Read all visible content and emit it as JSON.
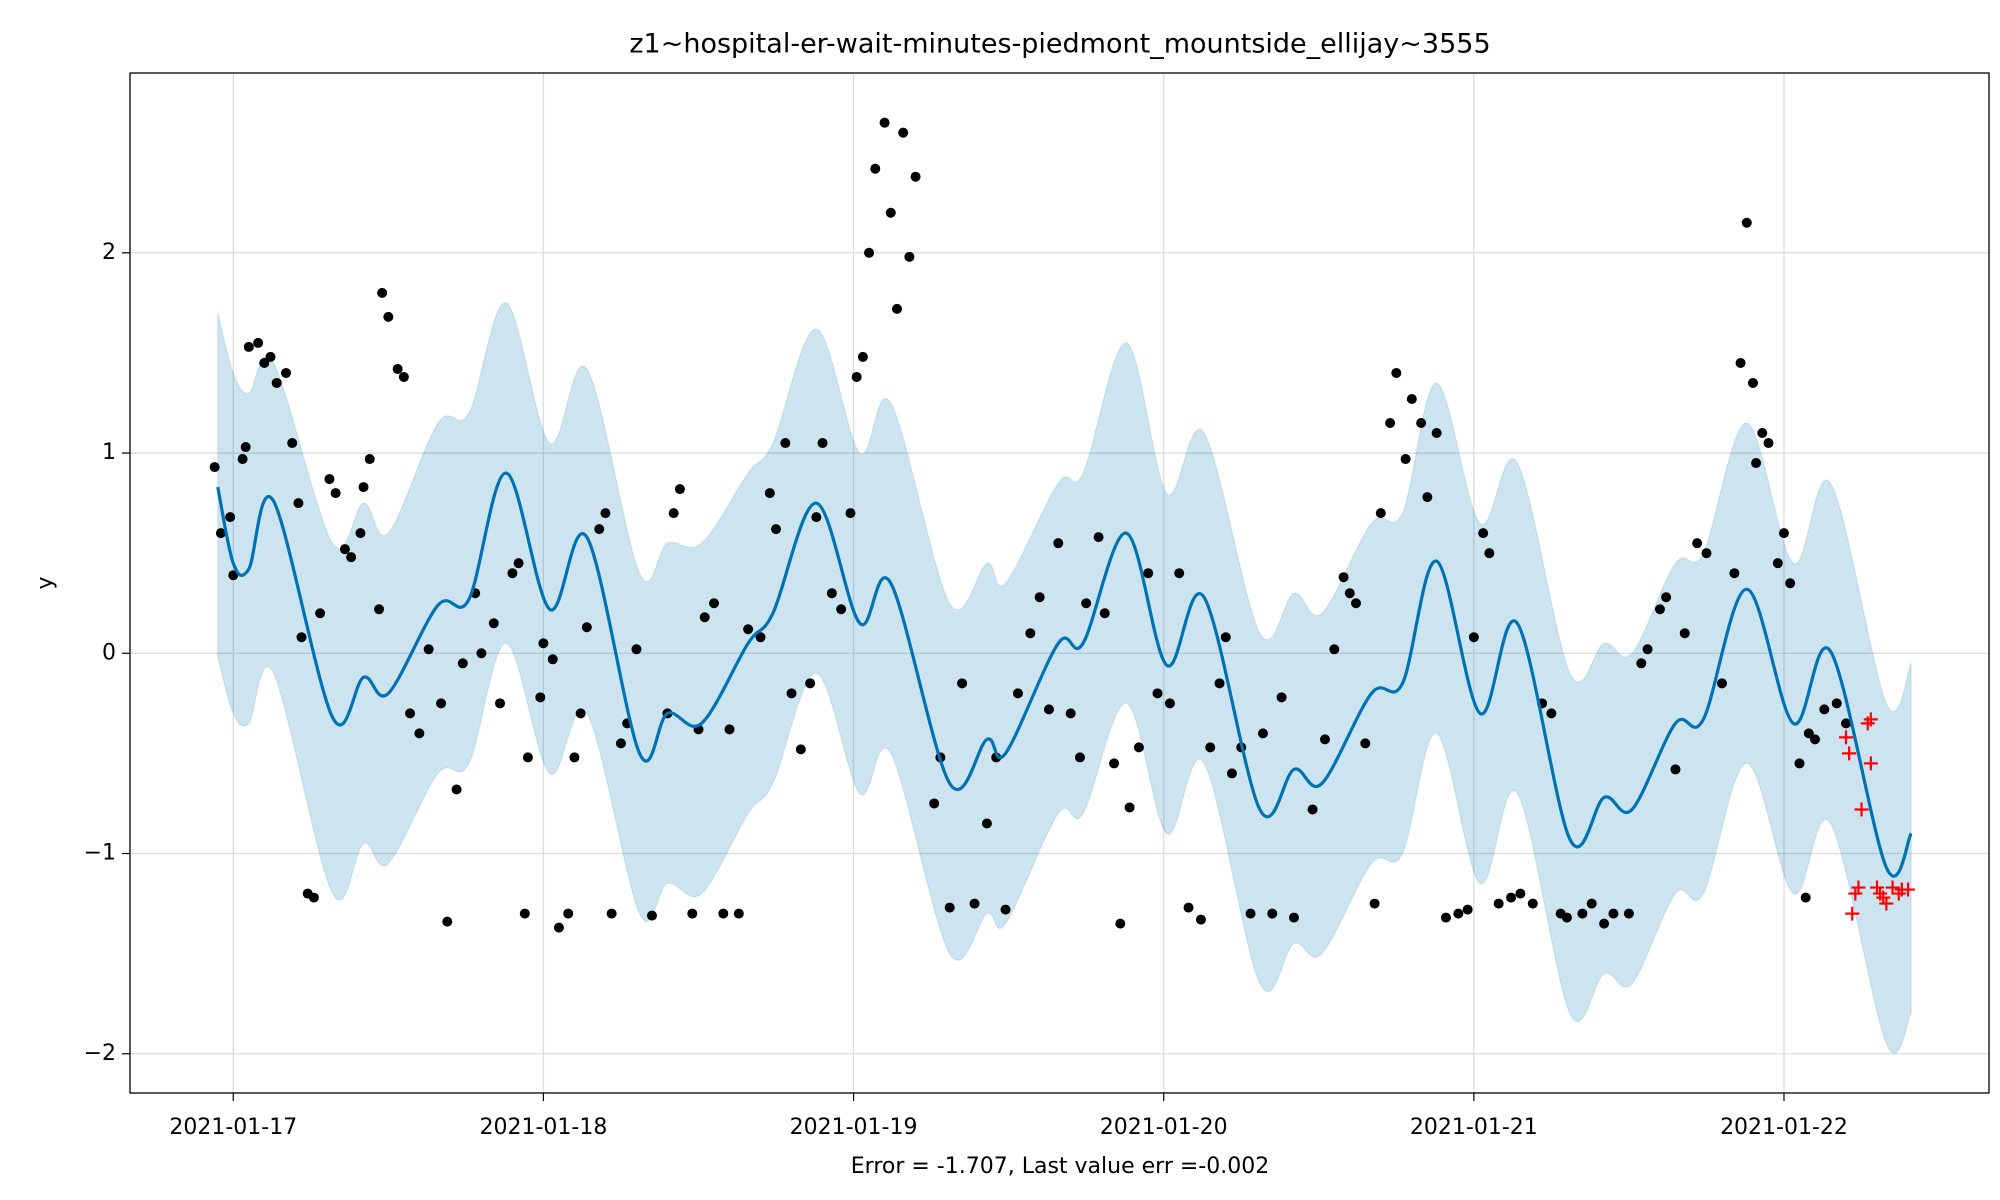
{
  "chart_data": {
    "type": "forecast",
    "title": "z1~hospital-er-wait-minutes-piedmont_mountside_ellijay~3555",
    "xlabel": "Error = -1.707, Last value err =-0.002",
    "ylabel": "y",
    "xlim": [
      16.667,
      22.661
    ],
    "ylim": [
      -2.196,
      2.898
    ],
    "xticks": [
      {
        "value": 17,
        "label": "2021-01-17"
      },
      {
        "value": 18,
        "label": "2021-01-18"
      },
      {
        "value": 19,
        "label": "2021-01-19"
      },
      {
        "value": 20,
        "label": "2021-01-20"
      },
      {
        "value": 21,
        "label": "2021-01-21"
      },
      {
        "value": 22,
        "label": "2021-01-22"
      }
    ],
    "yticks": [
      {
        "value": -2,
        "label": "−2"
      },
      {
        "value": -1,
        "label": "−1"
      },
      0,
      1,
      2
    ],
    "grid": true,
    "forecast": {
      "color": "#0072b2",
      "x": [
        16.95,
        17.0,
        17.05,
        17.13,
        17.32,
        17.42,
        17.5,
        17.66,
        17.76,
        17.88,
        18.02,
        18.14,
        18.31,
        18.4,
        18.51,
        18.66,
        18.74,
        18.88,
        19.02,
        19.12,
        19.31,
        19.43,
        19.49,
        19.66,
        19.74,
        19.88,
        20.01,
        20.13,
        20.31,
        20.42,
        20.51,
        20.67,
        20.77,
        20.88,
        21.02,
        21.14,
        21.31,
        21.42,
        21.51,
        21.65,
        21.74,
        21.88,
        22.03,
        22.15,
        22.33,
        22.41
      ],
      "values": [
        0.83,
        0.45,
        0.42,
        0.76,
        -0.32,
        -0.12,
        -0.2,
        0.24,
        0.27,
        0.9,
        0.22,
        0.58,
        -0.5,
        -0.3,
        -0.35,
        0.05,
        0.2,
        0.75,
        0.15,
        0.35,
        -0.65,
        -0.43,
        -0.5,
        0.05,
        0.05,
        0.6,
        -0.06,
        0.28,
        -0.78,
        -0.58,
        -0.65,
        -0.2,
        -0.15,
        0.46,
        -0.3,
        0.15,
        -0.93,
        -0.72,
        -0.78,
        -0.35,
        -0.33,
        0.32,
        -0.35,
        0.01,
        -1.07,
        -0.9
      ],
      "upper": [
        1.7,
        1.4,
        1.3,
        1.45,
        0.55,
        0.75,
        0.6,
        1.15,
        1.2,
        1.75,
        1.05,
        1.42,
        0.4,
        0.55,
        0.55,
        0.9,
        1.05,
        1.62,
        1.0,
        1.25,
        0.25,
        0.45,
        0.35,
        0.85,
        0.9,
        1.55,
        0.8,
        1.1,
        0.1,
        0.3,
        0.2,
        0.65,
        0.7,
        1.35,
        0.65,
        0.95,
        -0.1,
        0.05,
        0.0,
        0.45,
        0.5,
        1.15,
        0.45,
        0.85,
        -0.25,
        -0.05
      ],
      "lower": [
        -0.02,
        -0.3,
        -0.35,
        -0.1,
        -1.2,
        -0.95,
        -1.05,
        -0.6,
        -0.55,
        0.05,
        -0.6,
        -0.3,
        -1.3,
        -1.15,
        -1.2,
        -0.8,
        -0.65,
        -0.1,
        -0.7,
        -0.5,
        -1.5,
        -1.3,
        -1.35,
        -0.8,
        -0.8,
        -0.25,
        -0.9,
        -0.55,
        -1.65,
        -1.45,
        -1.5,
        -1.05,
        -1.0,
        -0.4,
        -1.15,
        -0.7,
        -1.8,
        -1.6,
        -1.65,
        -1.2,
        -1.2,
        -0.55,
        -1.2,
        -0.85,
        -1.95,
        -1.8
      ]
    },
    "observed": {
      "color": "#000000",
      "x": [
        16.94,
        16.96,
        16.99,
        17.0,
        17.03,
        17.04,
        17.05,
        17.08,
        17.1,
        17.12,
        17.14,
        17.17,
        17.19,
        17.21,
        17.22,
        17.24,
        17.26,
        17.28,
        17.31,
        17.33,
        17.36,
        17.38,
        17.41,
        17.42,
        17.44,
        17.47,
        17.48,
        17.5,
        17.53,
        17.55,
        17.57,
        17.6,
        17.63,
        17.67,
        17.69,
        17.72,
        17.74,
        17.78,
        17.8,
        17.84,
        17.86,
        17.9,
        17.92,
        17.94,
        17.95,
        17.99,
        18.0,
        18.03,
        18.05,
        18.08,
        18.1,
        18.12,
        18.14,
        18.18,
        18.2,
        18.22,
        18.25,
        18.27,
        18.3,
        18.35,
        18.4,
        18.42,
        18.44,
        18.48,
        18.5,
        18.52,
        18.55,
        18.58,
        18.6,
        18.63,
        18.66,
        18.7,
        18.73,
        18.75,
        18.78,
        18.8,
        18.83,
        18.86,
        18.88,
        18.9,
        18.93,
        18.96,
        18.99,
        19.01,
        19.03,
        19.05,
        19.07,
        19.1,
        19.12,
        19.14,
        19.16,
        19.18,
        19.2,
        19.26,
        19.28,
        19.31,
        19.35,
        19.39,
        19.43,
        19.46,
        19.49,
        19.53,
        19.57,
        19.6,
        19.63,
        19.66,
        19.7,
        19.73,
        19.75,
        19.79,
        19.81,
        19.84,
        19.86,
        19.89,
        19.92,
        19.95,
        19.98,
        20.02,
        20.05,
        20.08,
        20.12,
        20.15,
        20.18,
        20.2,
        20.22,
        20.25,
        20.28,
        20.32,
        20.35,
        20.38,
        20.42,
        20.48,
        20.52,
        20.55,
        20.58,
        20.6,
        20.62,
        20.65,
        20.68,
        20.7,
        20.73,
        20.75,
        20.78,
        20.8,
        20.83,
        20.85,
        20.88,
        20.91,
        20.95,
        20.98,
        21.0,
        21.03,
        21.05,
        21.08,
        21.12,
        21.15,
        21.19,
        21.22,
        21.25,
        21.28,
        21.3,
        21.35,
        21.38,
        21.42,
        21.45,
        21.5,
        21.54,
        21.56,
        21.6,
        21.62,
        21.65,
        21.68,
        21.72,
        21.75,
        21.8,
        21.84,
        21.86,
        21.88,
        21.9,
        21.91,
        21.93,
        21.95,
        21.98,
        22.0,
        22.02,
        22.05,
        22.07,
        22.08,
        22.1,
        22.13,
        22.17,
        22.2
      ],
      "values": [
        0.93,
        0.6,
        0.68,
        0.39,
        0.97,
        1.03,
        1.53,
        1.55,
        1.45,
        1.48,
        1.35,
        1.4,
        1.05,
        0.75,
        0.08,
        -1.2,
        -1.22,
        0.2,
        0.87,
        0.8,
        0.52,
        0.48,
        0.6,
        0.83,
        0.97,
        0.22,
        1.8,
        1.68,
        1.42,
        1.38,
        -0.3,
        -0.4,
        0.02,
        -0.25,
        -1.34,
        -0.68,
        -0.05,
        0.3,
        0.0,
        0.15,
        -0.25,
        0.4,
        0.45,
        -1.3,
        -0.52,
        -0.22,
        0.05,
        -0.03,
        -1.37,
        -1.3,
        -0.52,
        -0.3,
        0.13,
        0.62,
        0.7,
        -1.3,
        -0.45,
        -0.35,
        0.02,
        -1.31,
        -0.3,
        0.7,
        0.82,
        -1.3,
        -0.38,
        0.18,
        0.25,
        -1.3,
        -0.38,
        -1.3,
        0.12,
        0.08,
        0.8,
        0.62,
        1.05,
        -0.2,
        -0.48,
        -0.15,
        0.68,
        1.05,
        0.3,
        0.22,
        0.7,
        1.38,
        1.48,
        2.0,
        2.42,
        2.65,
        2.2,
        1.72,
        2.6,
        1.98,
        2.38,
        -0.75,
        -0.52,
        -1.27,
        -0.15,
        -1.25,
        -0.85,
        -0.52,
        -1.28,
        -0.2,
        0.1,
        0.28,
        -0.28,
        0.55,
        -0.3,
        -0.52,
        0.25,
        0.58,
        0.2,
        -0.55,
        -1.35,
        -0.77,
        -0.47,
        0.4,
        -0.2,
        -0.25,
        0.4,
        -1.27,
        -1.33,
        -0.47,
        -0.15,
        0.08,
        -0.6,
        -0.47,
        -1.3,
        -0.4,
        -1.3,
        -0.22,
        -1.32,
        -0.78,
        -0.43,
        0.02,
        0.38,
        0.3,
        0.25,
        -0.45,
        -1.25,
        0.7,
        1.15,
        1.4,
        0.97,
        1.27,
        1.15,
        0.78,
        1.1,
        -1.32,
        -1.3,
        -1.28,
        0.08,
        0.6,
        0.5,
        -1.25,
        -1.22,
        -1.2,
        -1.25,
        -0.25,
        -0.3,
        -1.3,
        -1.32,
        -1.3,
        -1.25,
        -1.35,
        -1.3,
        -1.3,
        -0.05,
        0.02,
        0.22,
        0.28,
        -0.58,
        0.1,
        0.55,
        0.5,
        -0.15,
        0.4,
        1.45,
        2.15,
        1.35,
        0.95,
        1.1,
        1.05,
        0.45,
        0.6,
        0.35,
        -0.55,
        -1.22,
        -0.4,
        -0.43,
        -0.28,
        -0.25,
        -0.35
      ]
    },
    "test": {
      "color": "#ff0000",
      "x": [
        22.2,
        22.21,
        22.22,
        22.23,
        22.24,
        22.25,
        22.27,
        22.28,
        22.28,
        22.3,
        22.31,
        22.32,
        22.33,
        22.35,
        22.37,
        22.38,
        22.4
      ],
      "values": [
        -0.42,
        -0.5,
        -1.3,
        -1.2,
        -1.17,
        -0.78,
        -0.35,
        -0.55,
        -0.33,
        -1.17,
        -1.2,
        -1.22,
        -1.25,
        -1.17,
        -1.2,
        -1.18,
        -1.18
      ]
    }
  }
}
